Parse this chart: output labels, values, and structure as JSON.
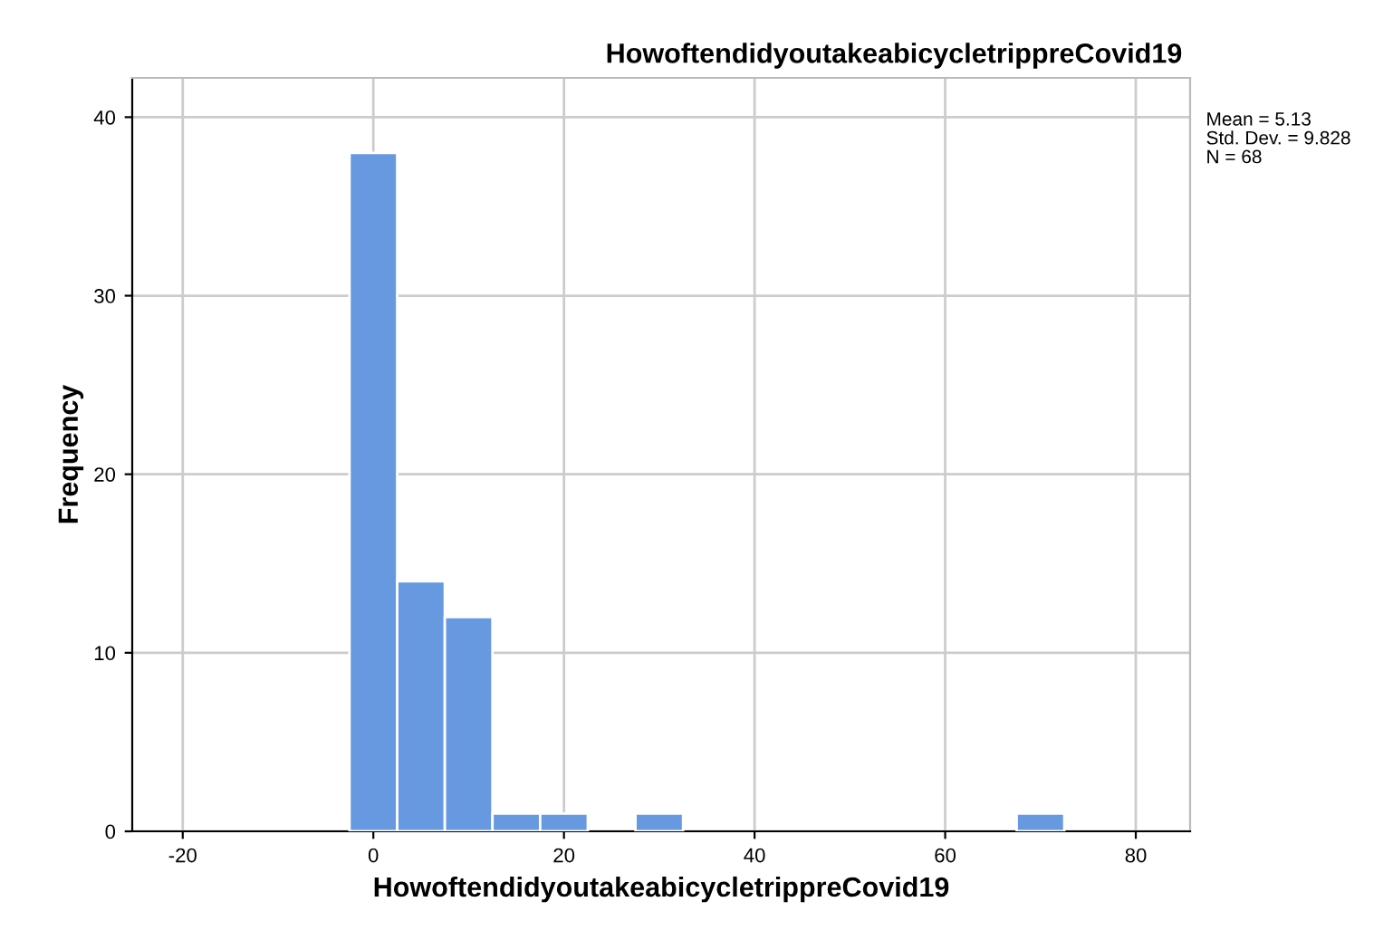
{
  "chart_data": {
    "type": "histogram",
    "title": "HowoftendidyoutakeabicycletrippreCovid19",
    "xlabel": "HowoftendidyoutakeabicycletrippreCovid19",
    "ylabel": "Frequency",
    "bins": [
      -2.5,
      2.5,
      7.5,
      12.5,
      17.5,
      22.5,
      27.5,
      32.5,
      37.5,
      42.5,
      47.5,
      52.5,
      57.5,
      62.5,
      67.5,
      72.5
    ],
    "values": [
      38,
      14,
      12,
      1,
      1,
      0,
      1,
      0,
      0,
      0,
      0,
      0,
      0,
      0,
      1
    ],
    "color": "#6699e0",
    "xlim": [
      -25.3,
      85.7
    ],
    "xticks": [
      -20,
      0,
      20,
      40,
      60,
      80
    ],
    "ylim": [
      0,
      42.2
    ],
    "yticks": [
      0,
      10,
      20,
      30,
      40
    ],
    "grid": true,
    "annotations": [
      "Mean = 5.13",
      "Std. Dev. = 9.828",
      "N = 68"
    ]
  }
}
